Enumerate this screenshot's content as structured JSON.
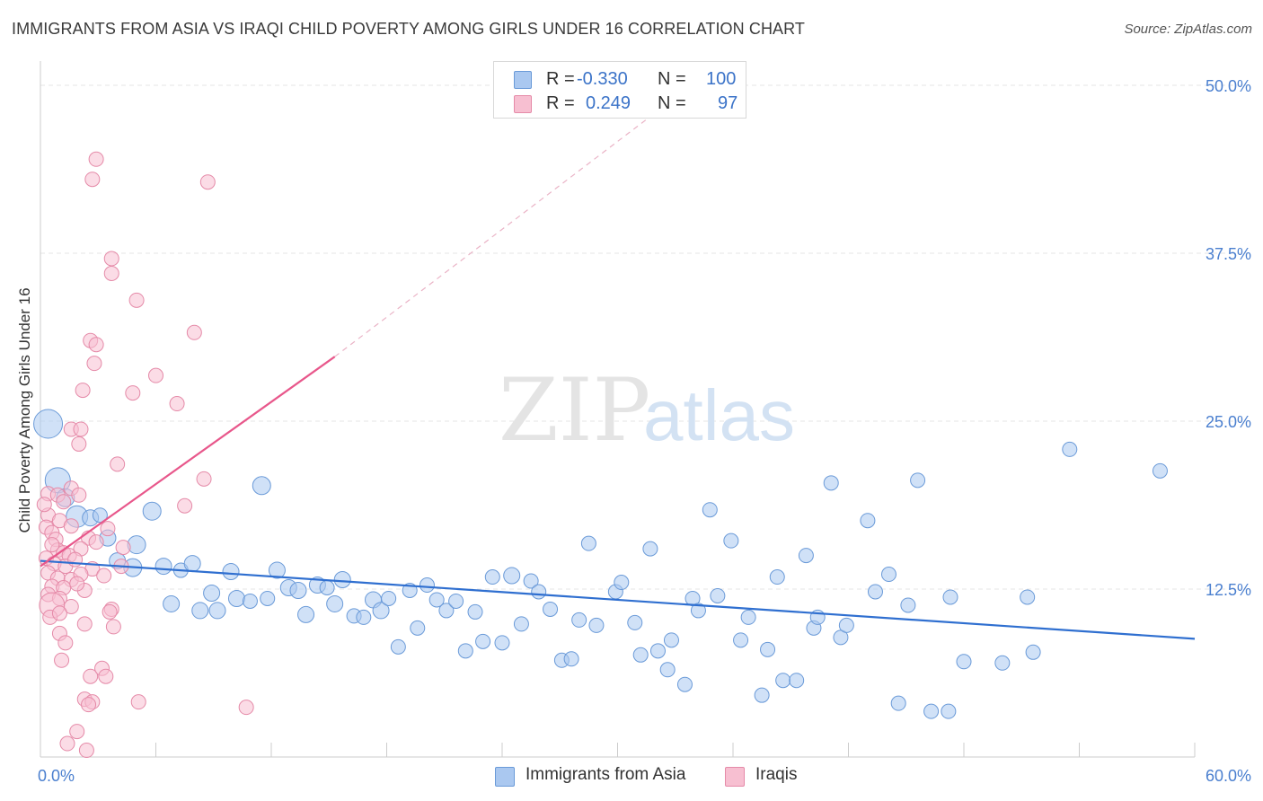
{
  "title": "IMMIGRANTS FROM ASIA VS IRAQI CHILD POVERTY AMONG GIRLS UNDER 16 CORRELATION CHART",
  "source": "Source: ZipAtlas.com",
  "watermark": {
    "zip": "ZIP",
    "atlas": "atlas"
  },
  "legend": {
    "rows": [
      {
        "r_label": "R =",
        "r_value": "-0.330",
        "n_label": "N =",
        "n_value": "100",
        "color": "#aac8f0",
        "border": "#6a9ad8"
      },
      {
        "r_label": "R =",
        "r_value": "0.249",
        "n_label": "N =",
        "n_value": "97",
        "color": "#f7bfd1",
        "border": "#e58aa8"
      }
    ]
  },
  "bottom_legend": [
    {
      "label": "Immigrants from Asia",
      "color": "#aac8f0",
      "border": "#6a9ad8"
    },
    {
      "label": "Iraqis",
      "color": "#f7bfd1",
      "border": "#e58aa8"
    }
  ],
  "chart_data": {
    "type": "scatter",
    "title": "IMMIGRANTS FROM ASIA VS IRAQI CHILD POVERTY AMONG GIRLS UNDER 16 CORRELATION CHART",
    "xlabel": "",
    "ylabel": "Child Poverty Among Girls Under 16",
    "xlim": [
      0,
      60
    ],
    "ylim": [
      0,
      50
    ],
    "x_tick_labels": [
      "0.0%",
      "60.0%"
    ],
    "y_ticks": [
      12.5,
      25.0,
      37.5,
      50.0
    ],
    "y_tick_labels": [
      "12.5%",
      "25.0%",
      "37.5%",
      "50.0%"
    ],
    "grid": true,
    "legend_position": "top-center",
    "series": [
      {
        "name": "Immigrants from Asia",
        "color": "#6a9ad8",
        "fill": "#aac8f0",
        "trend": {
          "x": [
            0,
            60
          ],
          "y": [
            14.6,
            8.8
          ],
          "color": "#2f6fd0"
        },
        "points": [
          [
            0.4,
            24.8,
            16
          ],
          [
            0.9,
            20.6,
            14
          ],
          [
            1.3,
            19.3,
            10
          ],
          [
            1.9,
            17.9,
            12
          ],
          [
            2.6,
            17.8,
            9
          ],
          [
            3.1,
            18.0,
            8
          ],
          [
            3.5,
            16.3,
            9
          ],
          [
            4.0,
            14.6,
            9
          ],
          [
            5.0,
            15.8,
            10
          ],
          [
            4.8,
            14.1,
            10
          ],
          [
            5.8,
            18.3,
            10
          ],
          [
            6.4,
            14.2,
            9
          ],
          [
            6.8,
            11.4,
            9
          ],
          [
            7.3,
            13.9,
            8
          ],
          [
            7.9,
            14.4,
            9
          ],
          [
            8.3,
            10.9,
            9
          ],
          [
            8.9,
            12.2,
            9
          ],
          [
            9.2,
            10.9,
            9
          ],
          [
            9.9,
            13.8,
            9
          ],
          [
            10.2,
            11.8,
            9
          ],
          [
            10.9,
            11.6,
            8
          ],
          [
            11.5,
            20.2,
            10
          ],
          [
            11.8,
            11.8,
            8
          ],
          [
            12.3,
            13.9,
            9
          ],
          [
            12.9,
            12.6,
            9
          ],
          [
            13.4,
            12.4,
            9
          ],
          [
            13.8,
            10.6,
            9
          ],
          [
            14.4,
            12.8,
            9
          ],
          [
            14.9,
            12.6,
            8
          ],
          [
            15.3,
            11.4,
            9
          ],
          [
            15.7,
            13.2,
            9
          ],
          [
            16.3,
            10.5,
            8
          ],
          [
            16.8,
            10.4,
            8
          ],
          [
            17.3,
            11.7,
            9
          ],
          [
            17.7,
            10.9,
            9
          ],
          [
            18.1,
            11.8,
            8
          ],
          [
            18.6,
            8.2,
            8
          ],
          [
            19.2,
            12.4,
            8
          ],
          [
            19.6,
            9.6,
            8
          ],
          [
            20.1,
            12.8,
            8
          ],
          [
            20.6,
            11.7,
            8
          ],
          [
            21.1,
            10.9,
            8
          ],
          [
            21.6,
            11.6,
            8
          ],
          [
            22.1,
            7.9,
            8
          ],
          [
            22.6,
            10.8,
            8
          ],
          [
            23.0,
            8.6,
            8
          ],
          [
            23.5,
            13.4,
            8
          ],
          [
            24.0,
            8.5,
            8
          ],
          [
            24.5,
            13.5,
            9
          ],
          [
            25.0,
            9.9,
            8
          ],
          [
            25.5,
            13.1,
            8
          ],
          [
            25.9,
            12.3,
            8
          ],
          [
            26.5,
            11.0,
            8
          ],
          [
            27.1,
            7.2,
            8
          ],
          [
            27.6,
            7.3,
            8
          ],
          [
            28.0,
            10.2,
            8
          ],
          [
            28.5,
            15.9,
            8
          ],
          [
            28.9,
            9.8,
            8
          ],
          [
            29.9,
            12.3,
            8
          ],
          [
            30.2,
            13.0,
            8
          ],
          [
            30.9,
            10.0,
            8
          ],
          [
            31.2,
            7.6,
            8
          ],
          [
            31.7,
            15.5,
            8
          ],
          [
            32.1,
            7.9,
            8
          ],
          [
            32.6,
            6.5,
            8
          ],
          [
            32.8,
            8.7,
            8
          ],
          [
            33.5,
            5.4,
            8
          ],
          [
            33.9,
            11.8,
            8
          ],
          [
            34.2,
            10.9,
            8
          ],
          [
            34.8,
            18.4,
            8
          ],
          [
            35.2,
            12.0,
            8
          ],
          [
            35.9,
            16.1,
            8
          ],
          [
            36.4,
            8.7,
            8
          ],
          [
            36.8,
            10.4,
            8
          ],
          [
            37.5,
            4.6,
            8
          ],
          [
            37.8,
            8.0,
            8
          ],
          [
            38.3,
            13.4,
            8
          ],
          [
            38.6,
            5.7,
            8
          ],
          [
            39.3,
            5.7,
            8
          ],
          [
            39.8,
            15.0,
            8
          ],
          [
            40.2,
            9.6,
            8
          ],
          [
            40.4,
            10.4,
            8
          ],
          [
            41.1,
            20.4,
            8
          ],
          [
            41.6,
            8.9,
            8
          ],
          [
            41.9,
            9.8,
            8
          ],
          [
            43.0,
            17.6,
            8
          ],
          [
            43.4,
            12.3,
            8
          ],
          [
            44.1,
            13.6,
            8
          ],
          [
            44.6,
            4.0,
            8
          ],
          [
            45.1,
            11.3,
            8
          ],
          [
            45.6,
            20.6,
            8
          ],
          [
            46.3,
            3.4,
            8
          ],
          [
            47.2,
            3.4,
            8
          ],
          [
            47.3,
            11.9,
            8
          ],
          [
            48.0,
            7.1,
            8
          ],
          [
            50.0,
            7.0,
            8
          ],
          [
            51.3,
            11.9,
            8
          ],
          [
            51.6,
            7.8,
            8
          ],
          [
            53.5,
            22.9,
            8
          ],
          [
            58.2,
            21.3,
            8
          ]
        ]
      },
      {
        "name": "Iraqis",
        "color": "#e58aa8",
        "fill": "#f7bfd1",
        "trend": {
          "x": [
            0,
            15.3
          ],
          "y": [
            14.2,
            29.8
          ],
          "color": "#e8578b",
          "dashed_extension_to": [
            32.0,
            48.0
          ]
        },
        "points": [
          [
            2.9,
            44.5,
            8
          ],
          [
            2.7,
            43.0,
            8
          ],
          [
            8.7,
            42.8,
            8
          ],
          [
            3.7,
            37.1,
            8
          ],
          [
            3.7,
            36.0,
            8
          ],
          [
            5.0,
            34.0,
            8
          ],
          [
            8.0,
            31.6,
            8
          ],
          [
            2.6,
            31.0,
            8
          ],
          [
            2.9,
            30.7,
            8
          ],
          [
            2.8,
            29.3,
            8
          ],
          [
            6.0,
            28.4,
            8
          ],
          [
            2.2,
            27.3,
            8
          ],
          [
            4.8,
            27.1,
            8
          ],
          [
            7.1,
            26.3,
            8
          ],
          [
            1.6,
            24.4,
            8
          ],
          [
            2.1,
            24.4,
            8
          ],
          [
            2.0,
            23.3,
            8
          ],
          [
            4.0,
            21.8,
            8
          ],
          [
            8.5,
            20.7,
            8
          ],
          [
            1.6,
            20.0,
            8
          ],
          [
            0.4,
            19.6,
            8
          ],
          [
            0.9,
            19.5,
            8
          ],
          [
            1.2,
            19.0,
            8
          ],
          [
            2.0,
            19.5,
            8
          ],
          [
            7.5,
            18.7,
            8
          ],
          [
            0.4,
            18.0,
            8
          ],
          [
            1.0,
            17.6,
            8
          ],
          [
            0.3,
            17.1,
            8
          ],
          [
            0.6,
            16.7,
            8
          ],
          [
            1.6,
            17.2,
            8
          ],
          [
            3.5,
            17.0,
            8
          ],
          [
            0.8,
            16.2,
            8
          ],
          [
            2.5,
            16.3,
            8
          ],
          [
            0.9,
            15.4,
            8
          ],
          [
            1.2,
            15.2,
            8
          ],
          [
            1.5,
            15.0,
            8
          ],
          [
            2.1,
            15.5,
            8
          ],
          [
            0.3,
            14.8,
            8
          ],
          [
            0.7,
            14.4,
            8
          ],
          [
            1.3,
            14.2,
            8
          ],
          [
            1.8,
            14.7,
            8
          ],
          [
            2.7,
            14.0,
            8
          ],
          [
            4.2,
            14.2,
            8
          ],
          [
            0.4,
            13.7,
            8
          ],
          [
            0.9,
            13.3,
            8
          ],
          [
            1.6,
            13.2,
            8
          ],
          [
            2.1,
            13.6,
            8
          ],
          [
            3.3,
            13.5,
            8
          ],
          [
            0.6,
            12.7,
            8
          ],
          [
            1.2,
            12.6,
            8
          ],
          [
            2.3,
            12.4,
            8
          ],
          [
            0.4,
            12.1,
            8
          ],
          [
            1.0,
            11.8,
            8
          ],
          [
            0.6,
            11.3,
            14
          ],
          [
            1.6,
            11.2,
            8
          ],
          [
            3.7,
            11.0,
            8
          ],
          [
            0.5,
            10.4,
            8
          ],
          [
            1.0,
            10.7,
            8
          ],
          [
            2.3,
            9.9,
            8
          ],
          [
            3.6,
            10.8,
            8
          ],
          [
            1.0,
            9.2,
            8
          ],
          [
            1.3,
            8.5,
            8
          ],
          [
            3.8,
            9.7,
            8
          ],
          [
            1.1,
            7.2,
            8
          ],
          [
            2.6,
            6.0,
            8
          ],
          [
            3.2,
            6.6,
            8
          ],
          [
            3.4,
            6.0,
            8
          ],
          [
            2.3,
            4.3,
            8
          ],
          [
            2.7,
            4.1,
            8
          ],
          [
            2.5,
            3.9,
            8
          ],
          [
            5.1,
            4.1,
            8
          ],
          [
            10.7,
            3.7,
            8
          ],
          [
            1.9,
            1.9,
            8
          ],
          [
            1.4,
            1.0,
            8
          ],
          [
            2.4,
            0.5,
            8
          ],
          [
            0.2,
            18.8,
            8
          ],
          [
            0.6,
            15.8,
            8
          ],
          [
            1.9,
            12.9,
            8
          ],
          [
            4.3,
            15.6,
            8
          ],
          [
            2.9,
            16.0,
            8
          ]
        ]
      }
    ]
  }
}
